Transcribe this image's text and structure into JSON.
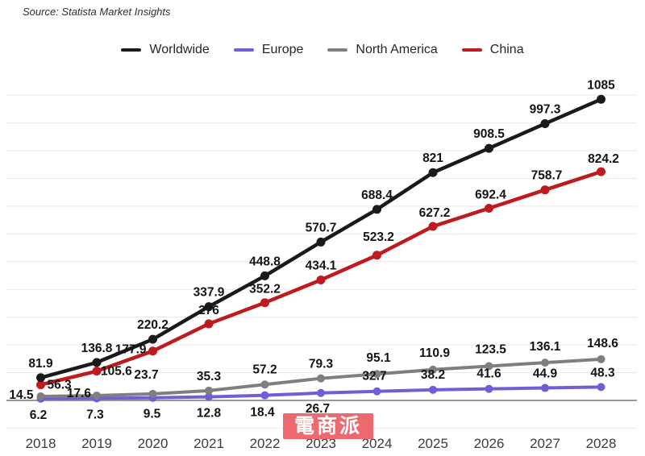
{
  "source": "Source: Statista Market Insights",
  "watermark": {
    "text": "電商派",
    "bg": "#ec6a6e",
    "fg": "#ffffff"
  },
  "legend": [
    {
      "label": "Worldwide",
      "color": "#1a1a1a"
    },
    {
      "label": "Europe",
      "color": "#6f5ed6"
    },
    {
      "label": "North America",
      "color": "#7f7f7f"
    },
    {
      "label": "China",
      "color": "#bf1a1e"
    }
  ],
  "chart_data": {
    "type": "line",
    "title": "",
    "xlabel": "",
    "ylabel": "",
    "x": [
      2018,
      2019,
      2020,
      2021,
      2022,
      2023,
      2024,
      2025,
      2026,
      2027,
      2028
    ],
    "series": [
      {
        "name": "Worldwide",
        "color": "#1a1a1a",
        "values": [
          81.9,
          136.8,
          220.2,
          337.9,
          448.8,
          570.7,
          688.4,
          821,
          908.5,
          997.3,
          1085
        ]
      },
      {
        "name": "Europe",
        "color": "#6f5ed6",
        "values": [
          6.2,
          7.3,
          9.5,
          12.8,
          18.4,
          26.7,
          32.7,
          38.2,
          41.6,
          44.9,
          48.3
        ]
      },
      {
        "name": "North America",
        "color": "#7f7f7f",
        "values": [
          14.5,
          17.6,
          23.7,
          35.3,
          57.2,
          79.3,
          95.1,
          110.9,
          123.5,
          136.1,
          148.6
        ]
      },
      {
        "name": "China",
        "color": "#bf1a1e",
        "values": [
          56.3,
          105.6,
          177.9,
          276,
          352.2,
          434.1,
          523.2,
          627.2,
          692.4,
          758.7,
          824.2
        ]
      }
    ],
    "ylim": [
      0,
      1150
    ],
    "y_gridline_interval": 100,
    "grid": "horizontal only",
    "legend_position": "top-center",
    "data_labels": true
  }
}
